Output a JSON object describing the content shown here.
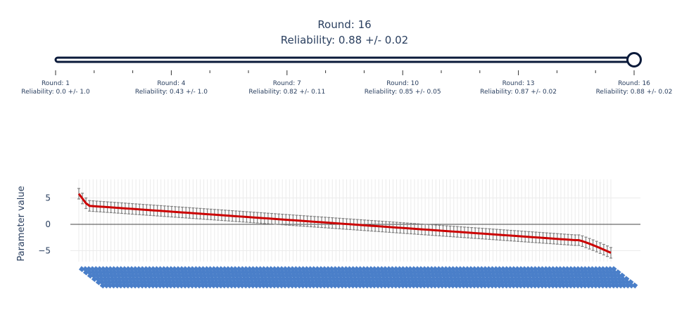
{
  "header": {
    "round_text": "Round: 16",
    "reliability_text": "Reliability: 0.88 +/- 0.02"
  },
  "slider": {
    "current_index": 15,
    "total_steps": 16,
    "step_labels": [
      {
        "round": "Round: 1",
        "reliability": "Reliability: 0.0 +/- 1.0"
      },
      {
        "round": "Round: 4",
        "reliability": "Reliability: 0.43 +/- 1.0"
      },
      {
        "round": "Round: 7",
        "reliability": "Reliability: 0.82 +/- 0.11"
      },
      {
        "round": "Round: 10",
        "reliability": "Reliability: 0.85 +/- 0.05"
      },
      {
        "round": "Round: 13",
        "reliability": "Reliability: 0.87 +/- 0.02"
      },
      {
        "round": "Round: 16",
        "reliability": "Reliability: 0.88 +/- 0.02"
      }
    ],
    "labeled_step_indices": [
      0,
      3,
      6,
      9,
      12,
      15
    ]
  },
  "colors": {
    "line": "#cc0000",
    "error_bar": "#7f7f7f",
    "slider_rail": "#0a1a3a",
    "grid": "#ebebeb",
    "zero_line": "#444444",
    "tick_text": "#4a7fc9"
  },
  "chart_data": {
    "type": "line",
    "title": "",
    "xlabel": "",
    "ylabel": "Parameter value",
    "ylim": [
      -7.2,
      8.8
    ],
    "yticks": [
      -5,
      0,
      5
    ],
    "grid": true,
    "n_points": 150,
    "y_start": 5.8,
    "y_drop_to": 4.0,
    "y_linear_from": 3.5,
    "y_linear_to": -3.0,
    "y_tail_end": -5.4,
    "err": 1.0,
    "x_tick_label_note": "vertical rotated category labels, unreadable"
  }
}
